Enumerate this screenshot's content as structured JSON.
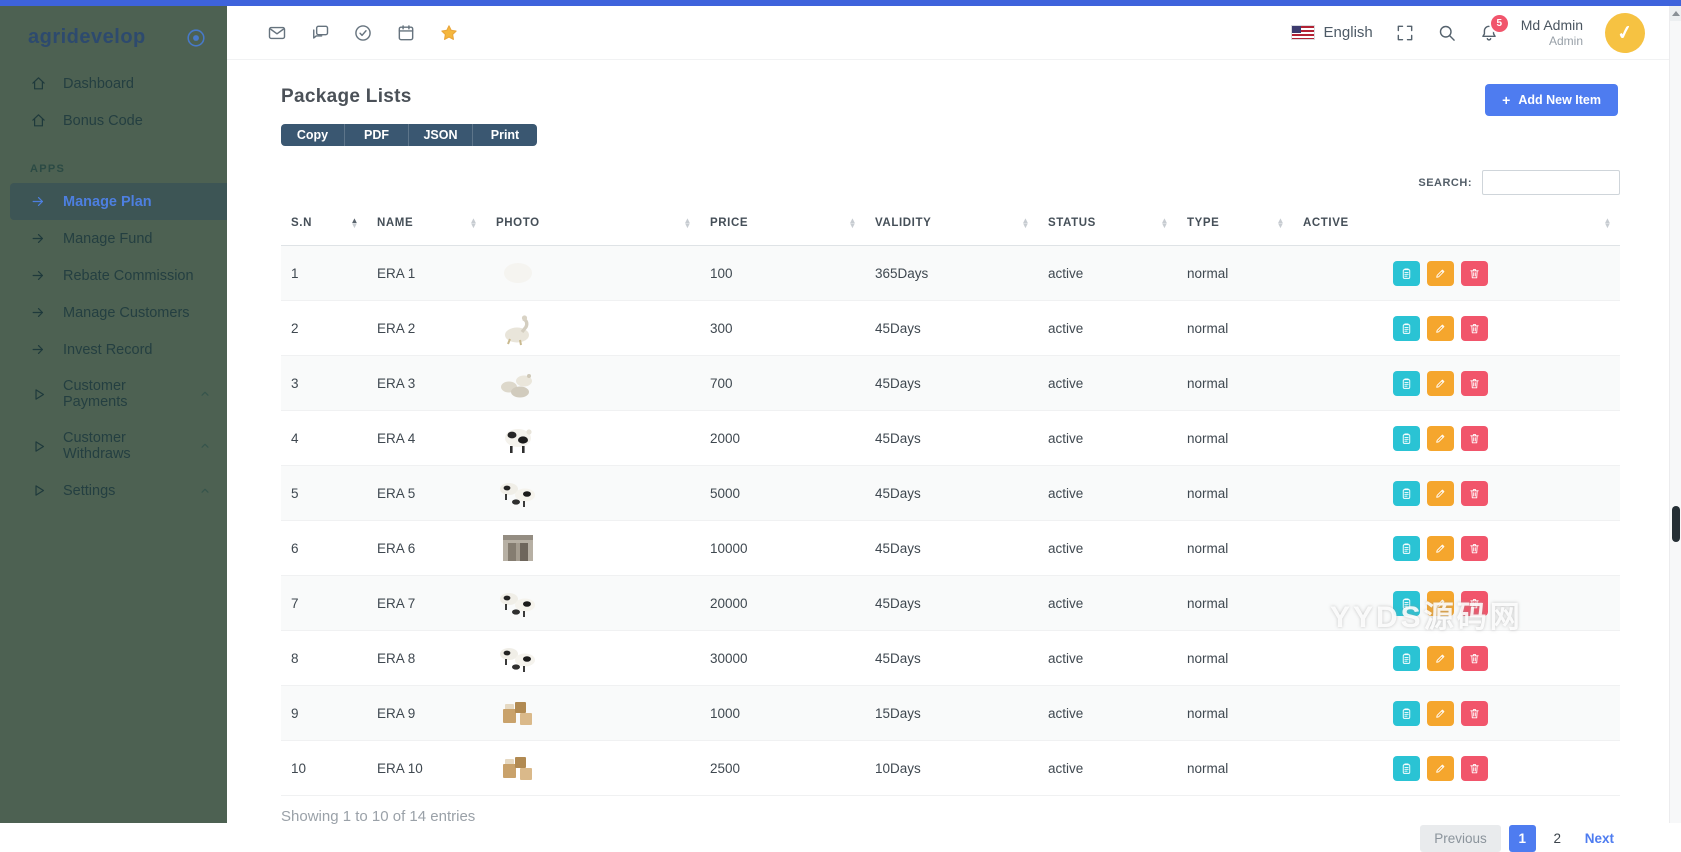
{
  "sidebar": {
    "logo_text": "agridevelop",
    "logo_icon": "circle-dot-icon",
    "groups": [
      {
        "label": "",
        "items": [
          {
            "label": "Dashboard",
            "icon": "home"
          },
          {
            "label": "Bonus Code",
            "icon": "home"
          }
        ]
      },
      {
        "label": "APPS",
        "items": [
          {
            "label": "Manage Plan",
            "icon": "arrow-right",
            "active": true
          },
          {
            "label": "Manage Fund",
            "icon": "arrow-right"
          },
          {
            "label": "Rebate Commission",
            "icon": "arrow-right"
          },
          {
            "label": "Manage Customers",
            "icon": "arrow-right"
          },
          {
            "label": "Invest Record",
            "icon": "arrow-right"
          },
          {
            "label": "Customer Payments",
            "icon": "play",
            "chevron": true
          },
          {
            "label": "Customer Withdraws",
            "icon": "play",
            "chevron": true
          },
          {
            "label": "Settings",
            "icon": "play",
            "chevron": true
          }
        ]
      }
    ]
  },
  "header": {
    "left_icons": [
      "mail",
      "chat",
      "check-circle",
      "calendar",
      "star"
    ],
    "language": "English",
    "notification_count": "5",
    "user_name": "Md Admin",
    "user_role": "Admin"
  },
  "main": {
    "title": "Package Lists",
    "export_buttons": [
      "Copy",
      "PDF",
      "JSON",
      "Print"
    ],
    "add_button_label": "Add New Item",
    "add_button_plus": "+",
    "search_label": "SEARCH:",
    "search_value": "",
    "table": {
      "columns": [
        "S.N",
        "NAME",
        "PHOTO",
        "PRICE",
        "VALIDITY",
        "STATUS",
        "TYPE",
        "ACTIVE"
      ],
      "sorted_column": "S.N",
      "rows": [
        {
          "sn": "1",
          "name": "ERA 1",
          "photo": "blank",
          "price": "100",
          "validity": "365Days",
          "status": "active",
          "type": "normal"
        },
        {
          "sn": "2",
          "name": "ERA 2",
          "photo": "goose",
          "price": "300",
          "validity": "45Days",
          "status": "active",
          "type": "normal"
        },
        {
          "sn": "3",
          "name": "ERA 3",
          "photo": "geese",
          "price": "700",
          "validity": "45Days",
          "status": "active",
          "type": "normal"
        },
        {
          "sn": "4",
          "name": "ERA 4",
          "photo": "cow",
          "price": "2000",
          "validity": "45Days",
          "status": "active",
          "type": "normal"
        },
        {
          "sn": "5",
          "name": "ERA 5",
          "photo": "cattle",
          "price": "5000",
          "validity": "45Days",
          "status": "active",
          "type": "normal"
        },
        {
          "sn": "6",
          "name": "ERA 6",
          "photo": "barn",
          "price": "10000",
          "validity": "45Days",
          "status": "active",
          "type": "normal"
        },
        {
          "sn": "7",
          "name": "ERA 7",
          "photo": "cattle",
          "price": "20000",
          "validity": "45Days",
          "status": "active",
          "type": "normal"
        },
        {
          "sn": "8",
          "name": "ERA 8",
          "photo": "cattle",
          "price": "30000",
          "validity": "45Days",
          "status": "active",
          "type": "normal"
        },
        {
          "sn": "9",
          "name": "ERA 9",
          "photo": "wood",
          "price": "1000",
          "validity": "15Days",
          "status": "active",
          "type": "normal"
        },
        {
          "sn": "10",
          "name": "ERA 10",
          "photo": "wood",
          "price": "2500",
          "validity": "10Days",
          "status": "active",
          "type": "normal"
        }
      ],
      "row_actions": [
        {
          "name": "view",
          "icon": "clipboard-icon",
          "color": "#2ac3d4"
        },
        {
          "name": "edit",
          "icon": "pencil-icon",
          "color": "#f5a62d"
        },
        {
          "name": "delete",
          "icon": "trash-icon",
          "color": "#f1556b"
        }
      ]
    },
    "summary": "Showing 1 to 10 of 14 entries",
    "pagination": {
      "previous": "Previous",
      "pages": [
        "1",
        "2"
      ],
      "active_page": "1",
      "next": "Next"
    }
  },
  "watermark": "YYDS源码网",
  "colors": {
    "topbar": "#3e63dc",
    "sidebar": "#4d6152",
    "active_link": "#4d7fe0",
    "accent_blue": "#4e7cf0",
    "export_button": "#3a5771",
    "action_view": "#2ac3d4",
    "action_edit": "#f5a62d",
    "action_delete": "#f1556b",
    "badge_red": "#f1556c",
    "avatar_yellow": "#f6c242"
  }
}
